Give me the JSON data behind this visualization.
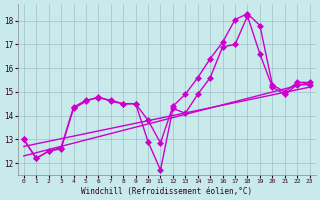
{
  "xlabel": "Windchill (Refroidissement éolien,°C)",
  "bg_color": "#c8eaea",
  "grid_color": "#a0b8c8",
  "line_color": "#cc00cc",
  "xlim": [
    -0.5,
    23.5
  ],
  "ylim": [
    11.5,
    18.7
  ],
  "yticks": [
    12,
    13,
    14,
    15,
    16,
    17,
    18
  ],
  "xticks": [
    0,
    1,
    2,
    3,
    4,
    5,
    6,
    7,
    8,
    9,
    10,
    11,
    12,
    13,
    14,
    15,
    16,
    17,
    18,
    19,
    20,
    21,
    22,
    23
  ],
  "series": [
    {
      "x": [
        0,
        1,
        2,
        3,
        4,
        5,
        6,
        7,
        8,
        9,
        10,
        11,
        12,
        13,
        14,
        15,
        16,
        17,
        18,
        19,
        20,
        21,
        22,
        23
      ],
      "y": [
        13.0,
        12.2,
        12.5,
        12.6,
        14.3,
        14.6,
        14.8,
        14.6,
        14.5,
        14.5,
        12.9,
        11.7,
        14.3,
        14.1,
        14.9,
        15.6,
        16.9,
        17.0,
        18.2,
        16.6,
        15.2,
        14.9,
        15.3,
        15.3
      ],
      "marker": true
    },
    {
      "x": [
        0,
        1,
        2,
        3,
        4,
        5,
        6,
        7,
        8,
        9,
        10,
        11,
        12,
        13,
        14,
        15,
        16,
        17,
        18,
        19,
        20,
        21,
        22,
        23
      ],
      "y": [
        13.0,
        12.2,
        12.5,
        12.65,
        14.35,
        14.65,
        14.75,
        14.65,
        14.5,
        14.5,
        13.8,
        12.85,
        14.4,
        14.9,
        15.6,
        16.4,
        17.1,
        18.05,
        18.3,
        17.8,
        15.3,
        15.0,
        15.4,
        15.4
      ],
      "marker": true
    },
    {
      "x": [
        0,
        23
      ],
      "y": [
        12.3,
        15.4
      ],
      "marker": false
    },
    {
      "x": [
        0,
        23
      ],
      "y": [
        12.7,
        15.2
      ],
      "marker": false
    }
  ],
  "marker_size": 3,
  "line_width": 1.0
}
